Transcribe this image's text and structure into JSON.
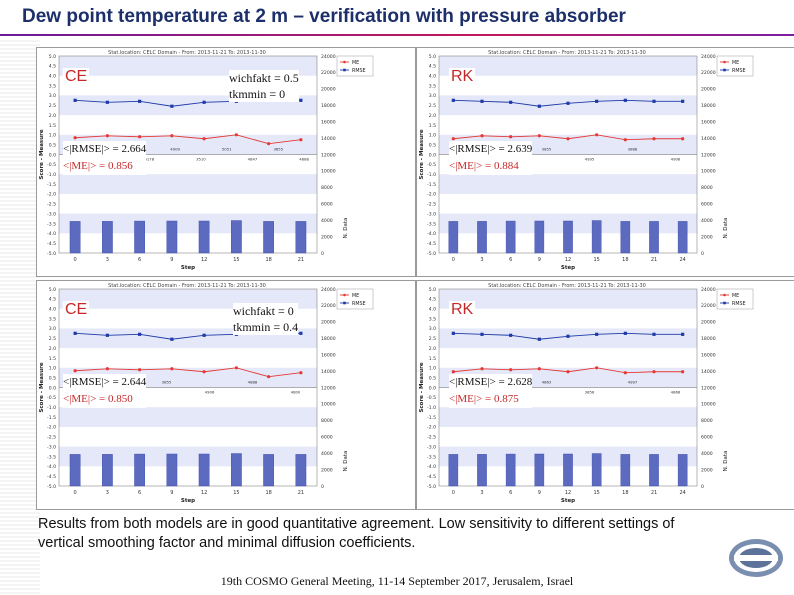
{
  "slide": {
    "title": "Dew point temperature at 2 m – verification with pressure absorber",
    "summary": "Results from both models are in good quantitative agreement. Low sensitivity to different settings of vertical smoothing factor and minimal diffusion coefficients.",
    "footer": "19th COSMO General Meeting, 11-14 September 2017, Jerusalem, Israel"
  },
  "colors": {
    "title": "#1c2f6b",
    "me": "#e53935",
    "rmse": "#1e3aa8",
    "bar": "#5c6bc0",
    "band": "#e4e8f8",
    "model_label": "#c62828"
  },
  "chart_data": [
    {
      "type": "bar",
      "panel_text": {
        "model": "CE",
        "settings": [
          "wichfakt = 0.5",
          "tkmmin = 0"
        ],
        "stats": [
          "<|RMSE|> = 2.664",
          "<|ME|> = 0.856"
        ]
      },
      "header": "Stat.location: CELC Domain - From: 2013-11-21 To: 2013-11-30",
      "xlabel": "Step",
      "ylabel": "Score - Measure",
      "y2label": "N. Data",
      "x": [
        0,
        3,
        6,
        9,
        12,
        15,
        18,
        21
      ],
      "xticks": [
        0,
        3,
        6,
        9,
        12,
        15,
        18,
        21
      ],
      "ylim": [
        -5,
        5
      ],
      "yticks": [
        "5.0",
        "4.5",
        "4.0",
        "3.5",
        "3.0",
        "2.5",
        "2.0",
        "1.5",
        "1.0",
        "0.5",
        "0.0",
        "-0.5",
        "-1.0",
        "-1.5",
        "-2.0",
        "-2.5",
        "-3.0",
        "-3.5",
        "-4.0",
        "-4.5",
        "-5.0"
      ],
      "y2lim": [
        0,
        24000
      ],
      "y2ticks": [
        "24000",
        "22000",
        "20000",
        "18000",
        "16000",
        "14000",
        "12000",
        "10000",
        "8000",
        "6000",
        "4000",
        "2000",
        "0"
      ],
      "legend": [
        "ME",
        "RMSE"
      ],
      "series": [
        {
          "name": "ME",
          "values": [
            0.85,
            0.95,
            0.9,
            0.95,
            0.8,
            1.0,
            0.55,
            0.75
          ]
        },
        {
          "name": "RMSE",
          "values": [
            2.75,
            2.65,
            2.7,
            2.45,
            2.65,
            2.7,
            2.8,
            2.75
          ]
        },
        {
          "name": "N. Data",
          "values": [
            3850,
            3857,
            3892,
            3900,
            3900,
            3957,
            3850,
            3850
          ]
        }
      ],
      "bar_labels": [
        "4847",
        "4886",
        "4087",
        "5178",
        "4909",
        "3510",
        "5051",
        "4847",
        "3855",
        "4888"
      ]
    },
    {
      "type": "bar",
      "panel_text": {
        "model": "RK",
        "settings": [],
        "stats": [
          "<|RMSE|> = 2.639",
          "<|ME|> = 0.884"
        ]
      },
      "header": "Stat.location: CELC Domain - From: 2013-11-21 To: 2013-11-30",
      "xlabel": "Step",
      "ylabel": "Score - Measure",
      "y2label": "N. Data",
      "x": [
        0,
        3,
        6,
        9,
        12,
        15,
        18,
        21,
        24
      ],
      "xticks": [
        0,
        3,
        6,
        9,
        12,
        15,
        18,
        21,
        24
      ],
      "ylim": [
        -5,
        5
      ],
      "yticks": [
        "5.0",
        "4.5",
        "4.0",
        "3.5",
        "3.0",
        "2.5",
        "2.0",
        "1.5",
        "1.0",
        "0.5",
        "0.0",
        "-0.5",
        "-1.0",
        "-1.5",
        "-2.0",
        "-2.5",
        "-3.0",
        "-3.5",
        "-4.0",
        "-4.5",
        "-5.0"
      ],
      "y2lim": [
        0,
        24000
      ],
      "y2ticks": [
        "24000",
        "22000",
        "20000",
        "18000",
        "16000",
        "14000",
        "12000",
        "10000",
        "8000",
        "6000",
        "4000",
        "2000",
        "0"
      ],
      "legend": [
        "ME",
        "RMSE"
      ],
      "series": [
        {
          "name": "ME",
          "values": [
            0.8,
            0.95,
            0.9,
            0.95,
            0.8,
            1.0,
            0.75,
            0.8,
            0.8
          ]
        },
        {
          "name": "RMSE",
          "values": [
            2.75,
            2.7,
            2.65,
            2.45,
            2.6,
            2.7,
            2.75,
            2.7,
            2.7
          ]
        },
        {
          "name": "N. Data",
          "values": [
            3850,
            3857,
            3892,
            3900,
            3900,
            3957,
            3850,
            3850,
            3850
          ]
        }
      ],
      "bar_labels": [
        "4847",
        "4888",
        "3855",
        "4995",
        "3888",
        "4906"
      ]
    },
    {
      "type": "bar",
      "panel_text": {
        "model": "CE",
        "settings": [
          "wichfakt = 0",
          "tkmmin = 0.4"
        ],
        "stats": [
          "<|RMSE|> = 2.644",
          "<|ME|> = 0.850"
        ]
      },
      "header": "Stat.location: CELC Domain - From: 2013-11-21 To: 2013-11-30",
      "xlabel": "Step",
      "ylabel": "Score - Measure",
      "y2label": "N. Data",
      "x": [
        0,
        3,
        6,
        9,
        12,
        15,
        18,
        21
      ],
      "xticks": [
        0,
        3,
        6,
        9,
        12,
        15,
        18,
        21
      ],
      "ylim": [
        -5,
        5
      ],
      "yticks": [
        "5.0",
        "4.5",
        "4.0",
        "3.5",
        "3.0",
        "2.5",
        "2.0",
        "1.5",
        "1.0",
        "0.5",
        "0.0",
        "-0.5",
        "-1.0",
        "-1.5",
        "-2.0",
        "-2.5",
        "-3.0",
        "-3.5",
        "-4.0",
        "-4.5",
        "-5.0"
      ],
      "y2lim": [
        0,
        24000
      ],
      "y2ticks": [
        "24000",
        "22000",
        "20000",
        "18000",
        "16000",
        "14000",
        "12000",
        "10000",
        "8000",
        "6000",
        "4000",
        "2000",
        "0"
      ],
      "legend": [
        "ME",
        "RMSE"
      ],
      "series": [
        {
          "name": "ME",
          "values": [
            0.85,
            0.95,
            0.9,
            0.95,
            0.8,
            1.0,
            0.55,
            0.75
          ]
        },
        {
          "name": "RMSE",
          "values": [
            2.75,
            2.65,
            2.7,
            2.45,
            2.65,
            2.7,
            2.8,
            2.75
          ]
        },
        {
          "name": "N. Data",
          "values": [
            3850,
            3857,
            3892,
            3900,
            3900,
            3957,
            3850,
            3850
          ]
        }
      ],
      "bar_labels": [
        "4847",
        "4888",
        "3855",
        "4906",
        "4888",
        "4800"
      ]
    },
    {
      "type": "bar",
      "panel_text": {
        "model": "RK",
        "settings": [],
        "stats": [
          "<|RMSE|> = 2.628",
          "<|ME|> = 0.875"
        ]
      },
      "header": "Stat.location: CELC Domain - From: 2013-11-21 To: 2013-11-30",
      "xlabel": "Step",
      "ylabel": "Score - Measure",
      "y2label": "N. Data",
      "x": [
        0,
        3,
        6,
        9,
        12,
        15,
        18,
        21,
        24
      ],
      "xticks": [
        0,
        3,
        6,
        9,
        12,
        15,
        18,
        21,
        24
      ],
      "ylim": [
        -5,
        5
      ],
      "yticks": [
        "5.0",
        "4.5",
        "4.0",
        "3.5",
        "3.0",
        "2.5",
        "2.0",
        "1.5",
        "1.0",
        "0.5",
        "0.0",
        "-0.5",
        "-1.0",
        "-1.5",
        "-2.0",
        "-2.5",
        "-3.0",
        "-3.5",
        "-4.0",
        "-4.5",
        "-5.0"
      ],
      "y2lim": [
        0,
        24000
      ],
      "y2ticks": [
        "24000",
        "22000",
        "20000",
        "18000",
        "16000",
        "14000",
        "12000",
        "10000",
        "8000",
        "6000",
        "4000",
        "2000",
        "0"
      ],
      "legend": [
        "ME",
        "RMSE"
      ],
      "series": [
        {
          "name": "ME",
          "values": [
            0.8,
            0.95,
            0.9,
            0.95,
            0.8,
            1.0,
            0.75,
            0.8,
            0.8
          ]
        },
        {
          "name": "RMSE",
          "values": [
            2.75,
            2.7,
            2.65,
            2.45,
            2.6,
            2.7,
            2.75,
            2.7,
            2.7
          ]
        },
        {
          "name": "N. Data",
          "values": [
            3850,
            3857,
            3892,
            3900,
            3900,
            3957,
            3850,
            3850,
            3850
          ]
        }
      ],
      "bar_labels": [
        "2707",
        "4888",
        "4863",
        "3856",
        "4997",
        "4866"
      ]
    }
  ]
}
